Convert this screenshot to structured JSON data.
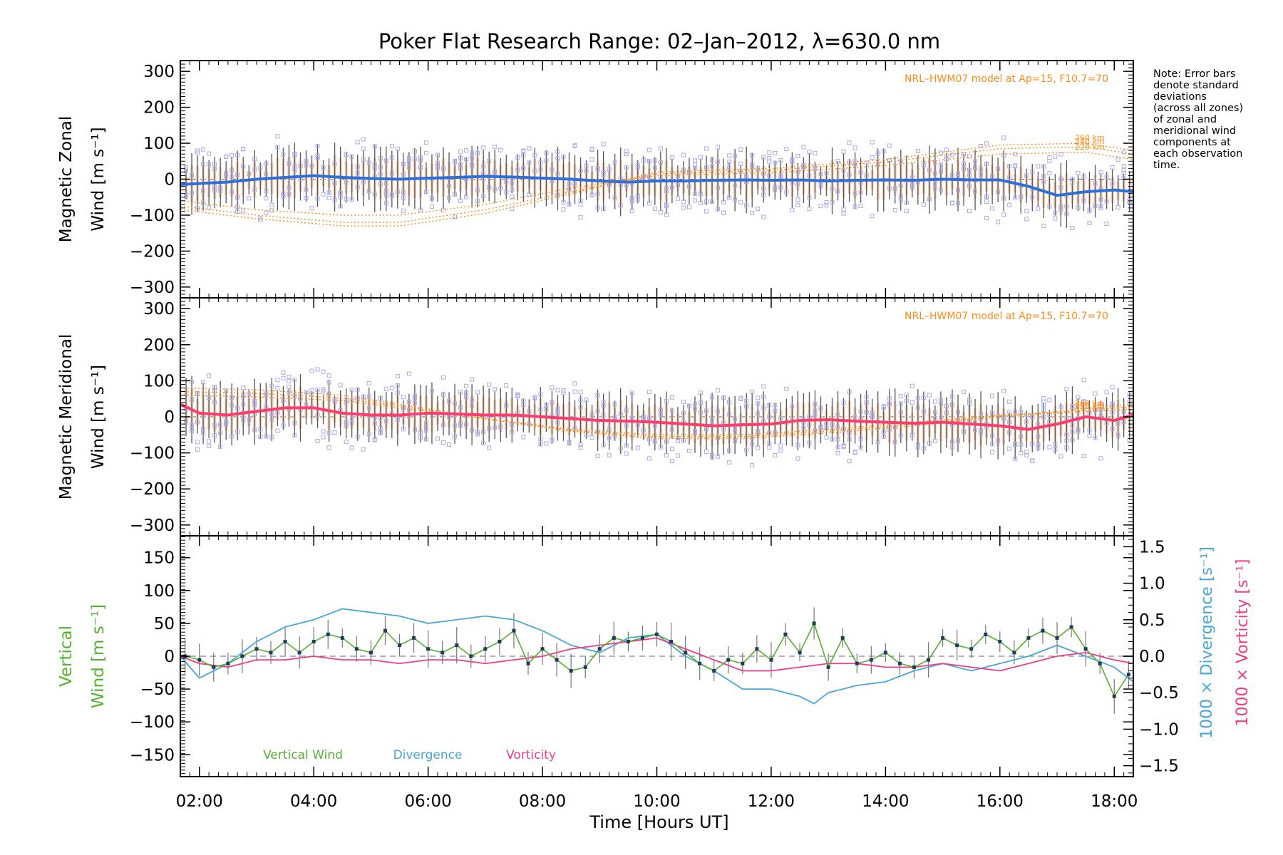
{
  "title": "Poker Flat Research Range: 02–Jan–2012, λ=630.0 nm",
  "note": [
    "Note: Error bars",
    "denote standard",
    "deviations",
    "(across all zones)",
    "of zonal and",
    "meridional wind",
    "components at",
    "each observation",
    "time."
  ],
  "colors": {
    "zonal": "#2f6fdc",
    "meridional": "#ff3c6e",
    "vertical": "#55b030",
    "divergence": "#4aa6d6",
    "vorticity": "#ee3c8a",
    "model": "#ff8c1a",
    "scatter": "#aaaae8",
    "errorbar": "#555555",
    "shade": "#f7d2b8"
  },
  "x_axis": {
    "label": "Time [Hours UT]",
    "range": [
      "01:40",
      "18:20"
    ],
    "ticks": [
      "02:00",
      "04:00",
      "06:00",
      "08:00",
      "10:00",
      "12:00",
      "14:00",
      "16:00",
      "18:00"
    ]
  },
  "chart_data": [
    {
      "type": "line",
      "panel": "zonal",
      "ylabel": [
        "Magnetic Zonal",
        "Wind [m s⁻¹]"
      ],
      "ylim": [
        -330,
        330
      ],
      "yticks": [
        "300",
        "200",
        "100",
        "0",
        "−100",
        "−200",
        "−300"
      ],
      "model_label": "NRL–HWM07 model at Ap=15, F10.7=70",
      "model_altitudes": [
        "260 km",
        "240 km",
        "220 km"
      ],
      "series": [
        {
          "name": "zonal",
          "x": [
            "01:40",
            "02:00",
            "02:30",
            "03:00",
            "03:30",
            "04:00",
            "04:30",
            "05:00",
            "05:30",
            "06:00",
            "06:30",
            "07:00",
            "07:30",
            "08:00",
            "08:30",
            "09:00",
            "09:30",
            "10:00",
            "10:30",
            "11:00",
            "11:30",
            "12:00",
            "12:30",
            "13:00",
            "13:30",
            "14:00",
            "14:30",
            "15:00",
            "15:30",
            "16:00",
            "16:30",
            "17:00",
            "17:30",
            "18:00",
            "18:20"
          ],
          "values": [
            -15,
            -12,
            -8,
            0,
            5,
            10,
            5,
            2,
            0,
            3,
            5,
            8,
            6,
            3,
            0,
            -5,
            -8,
            -5,
            -5,
            -3,
            -2,
            -3,
            -2,
            -5,
            -3,
            -2,
            -3,
            0,
            -2,
            -2,
            -20,
            -45,
            -35,
            -30,
            -35
          ]
        }
      ],
      "model_lines": [
        {
          "name": "260 km",
          "x": [
            "01:40",
            "03:00",
            "04:30",
            "05:30",
            "07:00",
            "08:30",
            "10:00",
            "12:00",
            "14:00",
            "16:00",
            "17:30",
            "18:20"
          ],
          "values": [
            -85,
            -110,
            -130,
            -130,
            -95,
            -40,
            20,
            30,
            55,
            95,
            100,
            80
          ]
        },
        {
          "name": "240 km",
          "x": [
            "01:40",
            "03:00",
            "04:30",
            "05:30",
            "07:00",
            "08:30",
            "10:00",
            "12:00",
            "14:00",
            "16:00",
            "17:30",
            "18:20"
          ],
          "values": [
            -75,
            -100,
            -120,
            -120,
            -85,
            -35,
            15,
            25,
            48,
            85,
            90,
            70
          ]
        },
        {
          "name": "220 km",
          "x": [
            "01:40",
            "03:00",
            "04:30",
            "05:30",
            "07:00",
            "08:30",
            "10:00",
            "12:00",
            "14:00",
            "16:00",
            "17:30",
            "18:20"
          ],
          "values": [
            -60,
            -85,
            -100,
            -100,
            -70,
            -25,
            10,
            18,
            38,
            70,
            75,
            55
          ]
        }
      ]
    },
    {
      "type": "line",
      "panel": "meridional",
      "ylabel": [
        "Magnetic Meridional",
        "Wind [m s⁻¹]"
      ],
      "ylim": [
        -330,
        330
      ],
      "yticks": [
        "300",
        "200",
        "100",
        "0",
        "−100",
        "−200",
        "−300"
      ],
      "model_label": "NRL–HWM07 model at Ap=15, F10.7=70",
      "model_altitudes": [
        "260 km",
        "240 km",
        "220 km"
      ],
      "series": [
        {
          "name": "meridional",
          "x": [
            "01:40",
            "02:00",
            "02:30",
            "03:00",
            "03:30",
            "04:00",
            "04:30",
            "05:00",
            "05:30",
            "06:00",
            "06:30",
            "07:00",
            "07:30",
            "08:00",
            "08:30",
            "09:00",
            "09:30",
            "10:00",
            "10:30",
            "11:00",
            "11:30",
            "12:00",
            "12:30",
            "13:00",
            "13:30",
            "14:00",
            "14:30",
            "15:00",
            "15:30",
            "16:00",
            "16:30",
            "17:00",
            "17:30",
            "18:00",
            "18:20"
          ],
          "values": [
            35,
            10,
            5,
            15,
            25,
            25,
            10,
            5,
            5,
            10,
            8,
            5,
            5,
            0,
            -5,
            -10,
            -12,
            -15,
            -20,
            -25,
            -22,
            -20,
            -10,
            -8,
            -12,
            -15,
            -18,
            -15,
            -20,
            -25,
            -35,
            -20,
            0,
            -10,
            5
          ]
        }
      ],
      "model_lines": [
        {
          "name": "260 km",
          "x": [
            "01:40",
            "03:00",
            "04:30",
            "05:30",
            "07:00",
            "08:30",
            "10:00",
            "11:30",
            "13:00",
            "14:30",
            "16:00",
            "17:00",
            "18:20"
          ],
          "values": [
            80,
            75,
            60,
            35,
            -5,
            -40,
            -60,
            -60,
            -45,
            -25,
            0,
            15,
            35
          ]
        },
        {
          "name": "240 km",
          "x": [
            "01:40",
            "03:00",
            "04:30",
            "05:30",
            "07:00",
            "08:30",
            "10:00",
            "11:30",
            "13:00",
            "14:30",
            "16:00",
            "17:00",
            "18:20"
          ],
          "values": [
            70,
            65,
            52,
            30,
            -5,
            -38,
            -55,
            -55,
            -40,
            -20,
            2,
            12,
            28
          ]
        },
        {
          "name": "220 km",
          "x": [
            "01:40",
            "03:00",
            "04:30",
            "05:30",
            "07:00",
            "08:30",
            "10:00",
            "11:30",
            "13:00",
            "14:30",
            "16:00",
            "17:00",
            "18:20"
          ],
          "values": [
            60,
            55,
            45,
            25,
            -5,
            -35,
            -50,
            -50,
            -35,
            -15,
            5,
            10,
            22
          ]
        }
      ]
    },
    {
      "type": "line",
      "panel": "vertical",
      "ylabel": [
        "Vertical",
        "Wind [m s⁻¹]"
      ],
      "ylim": [
        -165,
        165
      ],
      "yticks": [
        "150",
        "100",
        "50",
        "0",
        "−50",
        "−100",
        "−150"
      ],
      "y2label_divergence": "1000 × Divergence [s⁻¹]",
      "y2label_vorticity": "1000 × Vorticity [s⁻¹]",
      "y2lim": [
        -1.65,
        1.65
      ],
      "y2ticks": [
        "1.5",
        "1.0",
        "0.5",
        "0.0",
        "−0.5",
        "−1.0",
        "−1.5"
      ],
      "legend": [
        "Vertical Wind",
        "Divergence",
        "Vorticity"
      ],
      "series": [
        {
          "name": "Vertical Wind",
          "x": [
            "01:45",
            "02:00",
            "02:15",
            "02:30",
            "02:45",
            "03:00",
            "03:15",
            "03:30",
            "03:45",
            "04:00",
            "04:15",
            "04:30",
            "04:45",
            "05:00",
            "05:15",
            "05:30",
            "05:45",
            "06:00",
            "06:15",
            "06:30",
            "06:45",
            "07:00",
            "07:15",
            "07:30",
            "07:45",
            "08:00",
            "08:15",
            "08:30",
            "08:45",
            "09:00",
            "09:15",
            "09:30",
            "09:45",
            "10:00",
            "10:15",
            "10:30",
            "10:45",
            "11:00",
            "11:15",
            "11:30",
            "11:45",
            "12:00",
            "12:15",
            "12:30",
            "12:45",
            "13:00",
            "13:15",
            "13:30",
            "13:45",
            "14:00",
            "14:15",
            "14:30",
            "14:45",
            "15:00",
            "15:15",
            "15:30",
            "15:45",
            "16:00",
            "16:15",
            "16:30",
            "16:45",
            "17:00",
            "17:15",
            "17:30",
            "17:45",
            "18:00",
            "18:15"
          ],
          "values": [
            0,
            -5,
            -15,
            -10,
            0,
            10,
            5,
            20,
            5,
            20,
            30,
            25,
            10,
            5,
            35,
            15,
            25,
            10,
            5,
            15,
            0,
            10,
            20,
            35,
            -10,
            10,
            -5,
            -20,
            -15,
            10,
            25,
            20,
            25,
            30,
            20,
            5,
            -10,
            -20,
            -5,
            -10,
            10,
            -5,
            30,
            5,
            45,
            -15,
            25,
            -10,
            -5,
            5,
            -10,
            -15,
            -5,
            25,
            15,
            10,
            30,
            20,
            5,
            25,
            35,
            25,
            40,
            10,
            -10,
            -55,
            -25
          ]
        },
        {
          "name": "Divergence",
          "x": [
            "01:40",
            "02:00",
            "02:30",
            "03:00",
            "03:30",
            "04:00",
            "04:30",
            "05:00",
            "05:30",
            "06:00",
            "06:30",
            "07:00",
            "07:30",
            "08:00",
            "08:30",
            "09:00",
            "09:30",
            "10:00",
            "10:30",
            "11:00",
            "11:30",
            "12:00",
            "12:30",
            "12:45",
            "13:00",
            "13:30",
            "14:00",
            "14:30",
            "15:00",
            "15:30",
            "16:00",
            "16:30",
            "17:00",
            "17:30",
            "18:00",
            "18:20"
          ],
          "values": [
            0.0,
            -0.3,
            -0.1,
            0.2,
            0.4,
            0.5,
            0.65,
            0.6,
            0.55,
            0.45,
            0.5,
            0.55,
            0.5,
            0.35,
            0.15,
            0.05,
            0.25,
            0.3,
            0.0,
            -0.2,
            -0.45,
            -0.45,
            -0.55,
            -0.65,
            -0.5,
            -0.4,
            -0.35,
            -0.2,
            -0.1,
            -0.2,
            -0.1,
            0.0,
            0.15,
            0.0,
            -0.15,
            -0.35
          ]
        },
        {
          "name": "Vorticity",
          "x": [
            "01:40",
            "02:00",
            "02:30",
            "03:00",
            "03:30",
            "04:00",
            "04:30",
            "05:00",
            "05:30",
            "06:00",
            "06:30",
            "07:00",
            "07:30",
            "08:00",
            "08:30",
            "09:00",
            "09:30",
            "10:00",
            "10:30",
            "11:00",
            "11:30",
            "12:00",
            "12:30",
            "13:00",
            "13:30",
            "14:00",
            "14:30",
            "15:00",
            "15:30",
            "16:00",
            "16:30",
            "17:00",
            "17:30",
            "18:00",
            "18:20"
          ],
          "values": [
            0.0,
            -0.1,
            -0.15,
            -0.05,
            -0.05,
            0.0,
            -0.05,
            -0.05,
            -0.1,
            -0.05,
            -0.05,
            -0.1,
            -0.05,
            0.0,
            0.1,
            0.15,
            0.2,
            0.25,
            0.1,
            -0.05,
            -0.2,
            -0.2,
            -0.15,
            -0.1,
            -0.1,
            -0.15,
            -0.15,
            -0.1,
            -0.15,
            -0.2,
            -0.1,
            0.0,
            0.05,
            -0.05,
            -0.1
          ]
        }
      ]
    }
  ]
}
